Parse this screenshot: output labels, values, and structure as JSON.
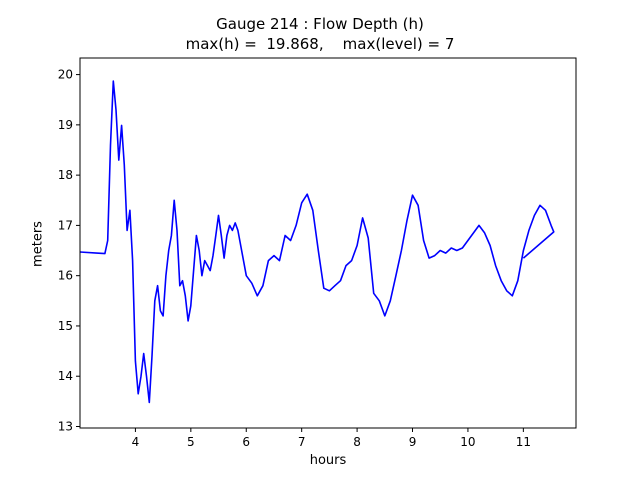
{
  "chart_data": {
    "type": "line",
    "title": "Gauge 214 : Flow Depth (h)",
    "subtitle": "max(h) =  19.868,    max(level) = 7",
    "xlabel": "hours",
    "ylabel": "meters",
    "xlim": [
      3.0,
      11.95
    ],
    "ylim": [
      12.97,
      20.33
    ],
    "xticks": [
      4,
      5,
      6,
      7,
      8,
      9,
      10,
      11
    ],
    "yticks": [
      13,
      14,
      15,
      16,
      17,
      18,
      19,
      20
    ],
    "grid": false,
    "series": [
      {
        "color": "#0000ff",
        "x": [
          3.0,
          3.3,
          3.45,
          3.5,
          3.55,
          3.6,
          3.65,
          3.7,
          3.75,
          3.8,
          3.85,
          3.9,
          3.95,
          4.0,
          4.05,
          4.1,
          4.15,
          4.2,
          4.25,
          4.3,
          4.35,
          4.4,
          4.45,
          4.5,
          4.55,
          4.6,
          4.65,
          4.7,
          4.75,
          4.8,
          4.85,
          4.9,
          4.95,
          5.0,
          5.05,
          5.1,
          5.15,
          5.2,
          5.25,
          5.3,
          5.35,
          5.4,
          5.45,
          5.5,
          5.55,
          5.6,
          5.65,
          5.7,
          5.75,
          5.8,
          5.85,
          5.9,
          5.95,
          6.0,
          6.1,
          6.2,
          6.3,
          6.4,
          6.5,
          6.6,
          6.7,
          6.8,
          6.9,
          7.0,
          7.1,
          7.2,
          7.3,
          7.4,
          7.5,
          7.6,
          7.7,
          7.8,
          7.9,
          8.0,
          8.1,
          8.2,
          8.3,
          8.4,
          8.5,
          8.6,
          8.7,
          8.8,
          8.9,
          9.0,
          9.1,
          9.2,
          9.3,
          9.4,
          9.5,
          9.6,
          9.7,
          9.8,
          9.9,
          10.0,
          10.1,
          10.2,
          10.3,
          10.4,
          10.5,
          10.6,
          10.7,
          10.8,
          10.9,
          11.0,
          11.1,
          11.2,
          11.3,
          11.4,
          11.5,
          11.55,
          11.0
        ],
        "values": [
          16.47,
          16.45,
          16.44,
          16.7,
          18.6,
          19.87,
          19.3,
          18.3,
          18.99,
          18.2,
          16.9,
          17.3,
          16.3,
          14.3,
          13.65,
          14.0,
          14.45,
          14.0,
          13.48,
          14.4,
          15.5,
          15.8,
          15.3,
          15.2,
          16.0,
          16.5,
          16.8,
          17.5,
          16.9,
          15.8,
          15.9,
          15.6,
          15.1,
          15.4,
          16.1,
          16.8,
          16.5,
          16.0,
          16.3,
          16.2,
          16.1,
          16.4,
          16.8,
          17.2,
          16.8,
          16.35,
          16.8,
          17.0,
          16.9,
          17.05,
          16.9,
          16.6,
          16.3,
          16.0,
          15.85,
          15.6,
          15.8,
          16.3,
          16.4,
          16.3,
          16.8,
          16.7,
          17.0,
          17.45,
          17.62,
          17.3,
          16.5,
          15.75,
          15.7,
          15.8,
          15.9,
          16.2,
          16.3,
          16.6,
          17.15,
          16.75,
          15.65,
          15.5,
          15.2,
          15.5,
          16.0,
          16.5,
          17.1,
          17.6,
          17.4,
          16.7,
          16.35,
          16.4,
          16.5,
          16.45,
          16.55,
          16.5,
          16.55,
          16.7,
          16.85,
          17.0,
          16.85,
          16.6,
          16.2,
          15.9,
          15.7,
          15.6,
          15.9,
          16.5,
          16.9,
          17.2,
          17.4,
          17.3,
          17.0,
          16.87,
          16.35
        ]
      }
    ]
  }
}
